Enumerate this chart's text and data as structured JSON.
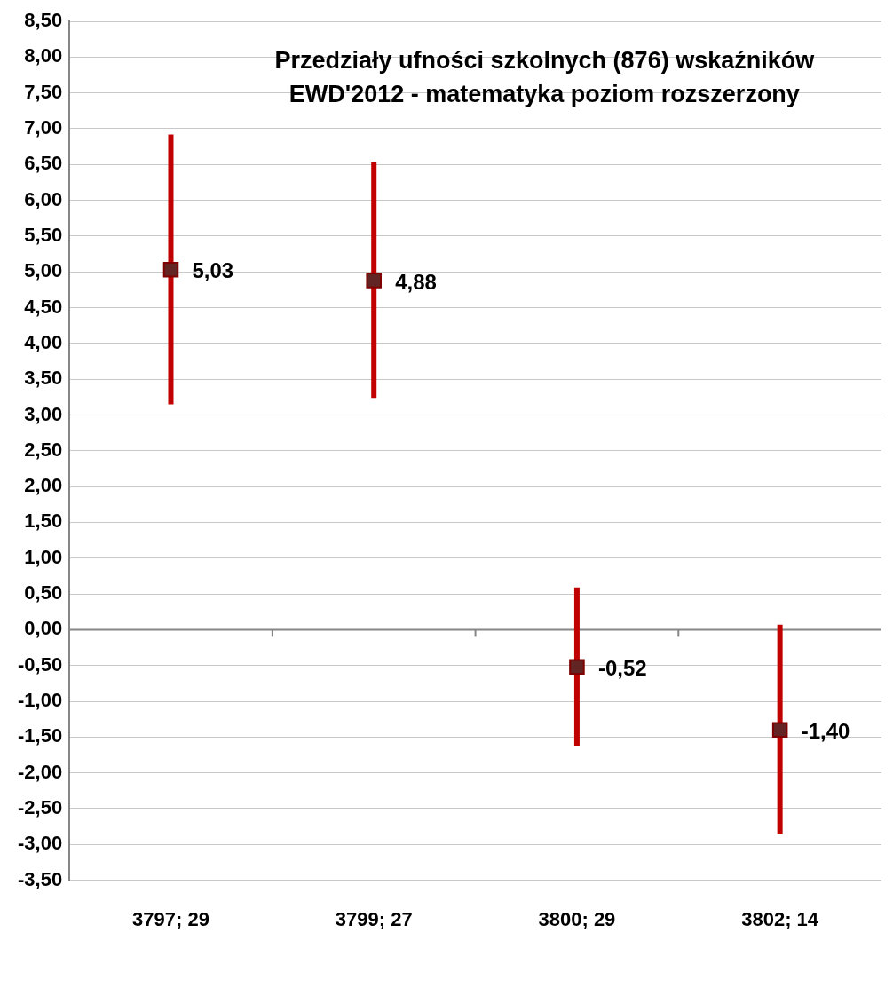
{
  "chart_data": {
    "type": "scatter",
    "title": "Przedziały ufności szkolnych (876) wskaźników EWD'2012 - matematyka poziom rozszerzony",
    "categories": [
      "3797; 29",
      "3799; 27",
      "3800; 29",
      "3802; 14"
    ],
    "values": [
      5.03,
      4.88,
      -0.52,
      -1.4
    ],
    "value_labels": [
      "5,03",
      "4,88",
      "-0,52",
      "-1,40"
    ],
    "errors": [
      [
        3.15,
        6.92
      ],
      [
        3.24,
        6.53
      ],
      [
        -1.62,
        0.59
      ],
      [
        -2.86,
        0.07
      ]
    ],
    "color": "#632523",
    "marker": "square",
    "ylim": [
      -3.5,
      8.5
    ],
    "yticks": [
      {
        "value": -3.5,
        "label": "-3,50"
      },
      {
        "value": -3,
        "label": "-3,00"
      },
      {
        "value": -2.5,
        "label": "-2,50"
      },
      {
        "value": -2,
        "label": "-2,00"
      },
      {
        "value": -1.5,
        "label": "-1,50"
      },
      {
        "value": -1,
        "label": "-1,00"
      },
      {
        "value": -0.5,
        "label": "-0,50"
      },
      {
        "value": 0,
        "label": "0,00"
      },
      {
        "value": 0.5,
        "label": "0,50"
      },
      {
        "value": 1,
        "label": "1,00"
      },
      {
        "value": 1.5,
        "label": "1,50"
      },
      {
        "value": 2,
        "label": "2,00"
      },
      {
        "value": 2.5,
        "label": "2,50"
      },
      {
        "value": 3,
        "label": "3,00"
      },
      {
        "value": 3.5,
        "label": "3,50"
      },
      {
        "value": 4,
        "label": "4,00"
      },
      {
        "value": 4.5,
        "label": "4,50"
      },
      {
        "value": 5,
        "label": "5,00"
      },
      {
        "value": 5.5,
        "label": "5,50"
      },
      {
        "value": 6,
        "label": "6,00"
      },
      {
        "value": 6.5,
        "label": "6,50"
      },
      {
        "value": 7,
        "label": "7,00"
      },
      {
        "value": 7.5,
        "label": "7,50"
      },
      {
        "value": 8,
        "label": "8,00"
      },
      {
        "value": 8.5,
        "label": "8,50"
      }
    ],
    "grid": "y",
    "legend": false
  }
}
